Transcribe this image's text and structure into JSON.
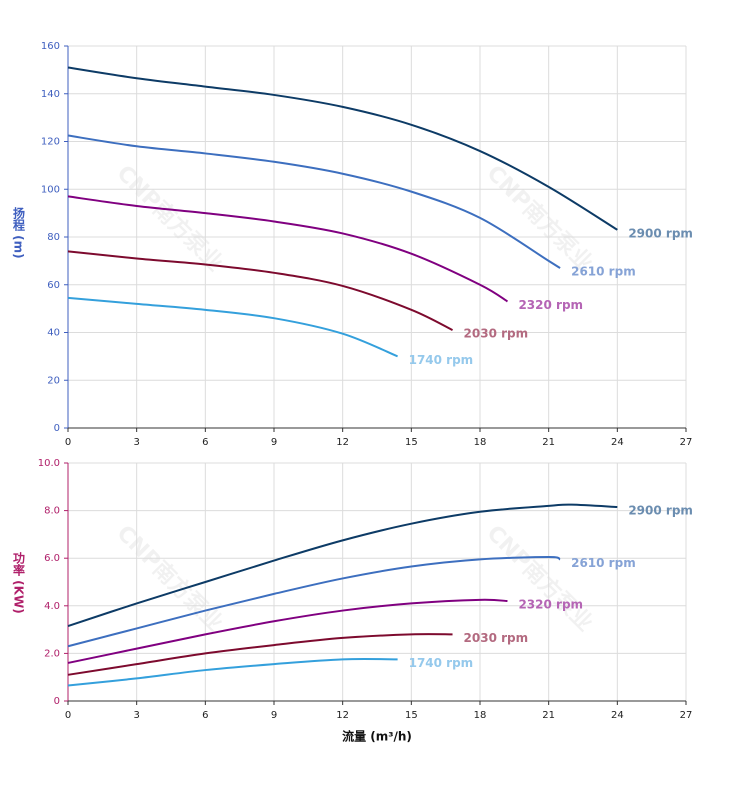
{
  "watermark": "CNP南方泵业",
  "chart_data": [
    {
      "type": "line",
      "y_label": "扬程 (m)",
      "axis_color": "#3f5fbf",
      "xlim": [
        0,
        27
      ],
      "xticks": [
        0,
        3,
        6,
        9,
        12,
        15,
        18,
        21,
        24,
        27
      ],
      "ylim": [
        0,
        160
      ],
      "yticks": [
        0,
        20,
        40,
        60,
        80,
        100,
        120,
        140,
        160
      ],
      "grid": true,
      "series": [
        {
          "name": "2900 rpm",
          "color": "#0d3b66",
          "label_color": "#6b8db0",
          "x": [
            0,
            3,
            6,
            9,
            12,
            15,
            18,
            21,
            24
          ],
          "values": [
            151,
            146.5,
            143,
            139.5,
            134.5,
            127,
            116,
            101,
            83
          ]
        },
        {
          "name": "2610 rpm",
          "color": "#3d6fbf",
          "label_color": "#86a3d6",
          "x": [
            0,
            3,
            6,
            9,
            12,
            15,
            18,
            21,
            21.5
          ],
          "values": [
            122.5,
            118,
            115,
            111.5,
            106.5,
            99,
            88,
            70,
            67
          ]
        },
        {
          "name": "2320 rpm",
          "color": "#800080",
          "label_color": "#b565b5",
          "x": [
            0,
            3,
            6,
            9,
            12,
            15,
            18,
            19.2
          ],
          "values": [
            97,
            93,
            90,
            86.5,
            81.5,
            73,
            60,
            53
          ]
        },
        {
          "name": "2030 rpm",
          "color": "#7d0a2e",
          "label_color": "#b36a80",
          "x": [
            0,
            3,
            6,
            9,
            12,
            15,
            16.8
          ],
          "values": [
            74,
            71,
            68.5,
            65,
            59.5,
            49.5,
            41
          ]
        },
        {
          "name": "1740 rpm",
          "color": "#34a0dc",
          "label_color": "#95c9ec",
          "x": [
            0,
            3,
            6,
            9,
            12,
            14.4
          ],
          "values": [
            54.5,
            52,
            49.5,
            46,
            39.5,
            30
          ]
        }
      ]
    },
    {
      "type": "line",
      "y_label": "功率 (KW)",
      "x_label": "流量 (m³/h)",
      "axis_color": "#b0206a",
      "xlim": [
        0,
        27
      ],
      "xticks": [
        0,
        3,
        6,
        9,
        12,
        15,
        18,
        21,
        24,
        27
      ],
      "ylim": [
        0,
        10
      ],
      "yticks": [
        0,
        {
          "value": 2,
          "label": "2.0"
        },
        {
          "value": 4,
          "label": "4.0"
        },
        {
          "value": 6,
          "label": "6.0"
        },
        {
          "value": 8,
          "label": "8.0"
        },
        {
          "value": 10,
          "label": "10.0"
        }
      ],
      "grid": true,
      "series": [
        {
          "name": "2900 rpm",
          "color": "#0d3b66",
          "label_color": "#6b8db0",
          "x": [
            0,
            3,
            6,
            9,
            12,
            15,
            18,
            21,
            22,
            24
          ],
          "values": [
            3.15,
            4.1,
            5.0,
            5.9,
            6.75,
            7.45,
            7.95,
            8.2,
            8.25,
            8.15
          ]
        },
        {
          "name": "2610 rpm",
          "color": "#3d6fbf",
          "label_color": "#86a3d6",
          "x": [
            0,
            3,
            6,
            9,
            12,
            15,
            18,
            21,
            21.5
          ],
          "values": [
            2.3,
            3.05,
            3.8,
            4.5,
            5.15,
            5.65,
            5.95,
            6.05,
            5.95
          ]
        },
        {
          "name": "2320 rpm",
          "color": "#800080",
          "label_color": "#b565b5",
          "x": [
            0,
            3,
            6,
            9,
            12,
            15,
            18,
            19.2
          ],
          "values": [
            1.6,
            2.2,
            2.8,
            3.35,
            3.8,
            4.1,
            4.25,
            4.2
          ]
        },
        {
          "name": "2030 rpm",
          "color": "#7d0a2e",
          "label_color": "#b36a80",
          "x": [
            0,
            3,
            6,
            9,
            12,
            15,
            16.8
          ],
          "values": [
            1.1,
            1.55,
            2.0,
            2.35,
            2.65,
            2.8,
            2.8
          ]
        },
        {
          "name": "1740 rpm",
          "color": "#34a0dc",
          "label_color": "#95c9ec",
          "x": [
            0,
            3,
            6,
            9,
            12,
            14.4
          ],
          "values": [
            0.65,
            0.95,
            1.3,
            1.55,
            1.75,
            1.75
          ]
        }
      ]
    }
  ]
}
